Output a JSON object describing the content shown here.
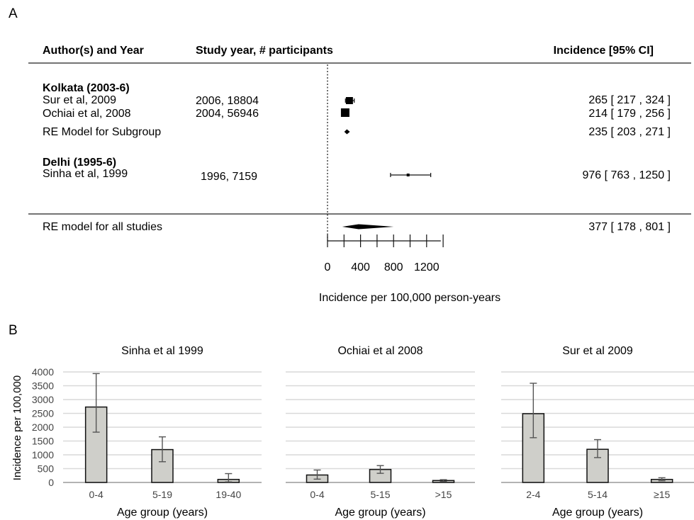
{
  "chart_data": [
    {
      "type": "forest",
      "panel_label": "A",
      "columns": [
        "Author(s) and Year",
        "Study year, # participants",
        "Incidence [95% CI]"
      ],
      "subgroups": [
        {
          "name": "Kolkata (2003-6)",
          "studies": [
            {
              "author": "Sur et al, 2009",
              "details": "2006, 18804",
              "estimate": 265,
              "lower": 217,
              "upper": 324,
              "ci_text": "265 [ 217 ,  324 ]"
            },
            {
              "author": "Ochiai et al, 2008",
              "details": "2004, 56946",
              "estimate": 214,
              "lower": 179,
              "upper": 256,
              "ci_text": "214 [ 179 ,  256 ]"
            }
          ],
          "summary": {
            "label": "RE Model for Subgroup",
            "estimate": 235,
            "lower": 203,
            "upper": 271,
            "ci_text": "235 [ 203 , 271 ]"
          }
        },
        {
          "name": "Delhi (1995-6)",
          "studies": [
            {
              "author": "Sinha et al, 1999",
              "details": "1996, 7159",
              "estimate": 976,
              "lower": 763,
              "upper": 1250,
              "ci_text": "976 [ 763 , 1250 ]"
            }
          ]
        }
      ],
      "overall": {
        "label": "RE model for all studies",
        "estimate": 377,
        "lower": 178,
        "upper": 801,
        "ci_text": "377 [ 178 ,  801 ]"
      },
      "xticks": [
        0,
        400,
        800,
        1200
      ],
      "xlabel": "Incidence per 100,000 person-years"
    },
    {
      "type": "bar",
      "panel_label": "B",
      "ylabel": "Incidence per 100,000",
      "ylim": [
        0,
        4000
      ],
      "yticks": [
        0,
        500,
        1000,
        1500,
        2000,
        2500,
        3000,
        3500,
        4000
      ],
      "grid": true,
      "bar_color": "#cfcfca",
      "subplots": [
        {
          "title": "Sinha et al 1999",
          "categories": [
            "0-4",
            "5-19",
            "19-40"
          ],
          "values": [
            2730,
            1190,
            110
          ],
          "err_low": [
            1820,
            750,
            20
          ],
          "err_high": [
            3940,
            1650,
            320
          ],
          "xlabel": "Age group (years)"
        },
        {
          "title": "Ochiai et al 2008",
          "categories": [
            "0-4",
            "5-15",
            ">15"
          ],
          "values": [
            270,
            470,
            70
          ],
          "err_low": [
            120,
            330,
            40
          ],
          "err_high": [
            450,
            610,
            100
          ],
          "xlabel": "Age group (years)"
        },
        {
          "title": "Sur et al 2009",
          "categories": [
            "2-4",
            "5-14",
            "≥15"
          ],
          "values": [
            2490,
            1200,
            110
          ],
          "err_low": [
            1620,
            900,
            60
          ],
          "err_high": [
            3590,
            1550,
            170
          ],
          "xlabel": "Age group (years)"
        }
      ]
    }
  ]
}
